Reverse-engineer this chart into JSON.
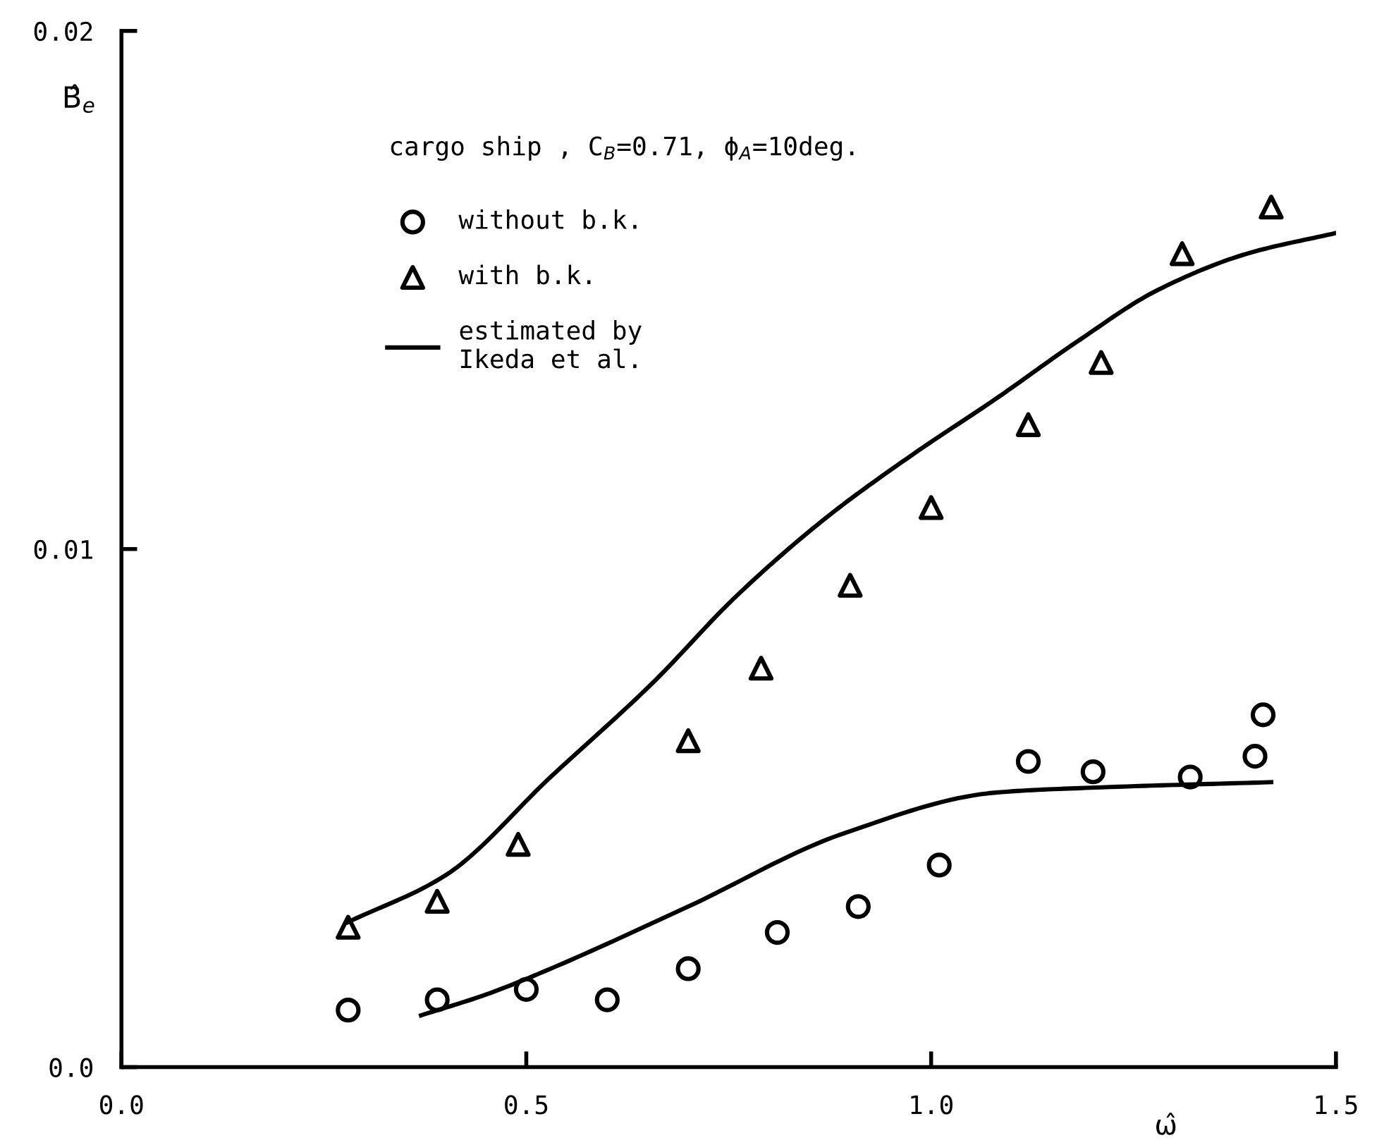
{
  "chart_data": {
    "type": "scatter",
    "xlabel": "ω̂",
    "ylabel": "B̂$_{e}$",
    "annotations": [
      "cargo ship , C$_{B}$=0.71, ϕ$_{A}$=10deg."
    ],
    "xlim": [
      0,
      1.5
    ],
    "xticks": [
      {
        "value": 0,
        "label": "0.0"
      },
      0.5,
      {
        "value": 1,
        "label": "1.0"
      },
      1.5
    ],
    "ylim": [
      0,
      0.02
    ],
    "yticks": [
      {
        "value": 0,
        "label": "0.0"
      },
      0.01,
      0.02
    ],
    "grid": false,
    "legend": "top left",
    "series": [
      {
        "name": "without b.k.",
        "marker": "circle",
        "color": "#000000",
        "x": [
          0.28,
          0.39,
          0.5,
          0.6,
          0.7,
          0.81,
          0.91,
          1.01,
          1.12,
          1.2,
          1.32,
          1.4,
          1.41
        ],
        "values": [
          0.0011,
          0.0013,
          0.0015,
          0.0013,
          0.0019,
          0.0026,
          0.0031,
          0.0039,
          0.0059,
          0.0057,
          0.0056,
          0.006,
          0.0068
        ]
      },
      {
        "name": "with b.k.",
        "marker": "triangle",
        "color": "#000000",
        "x": [
          0.28,
          0.39,
          0.49,
          0.7,
          0.79,
          0.9,
          1.0,
          1.12,
          1.21,
          1.31,
          1.42
        ],
        "values": [
          0.0027,
          0.0032,
          0.0043,
          0.0063,
          0.0077,
          0.0093,
          0.0108,
          0.0124,
          0.0136,
          0.0157,
          0.0166
        ]
      },
      {
        "name": "estimated by\nIkeda et al.",
        "type": "line",
        "marker": "none",
        "line_style": "solid",
        "color": "#000000",
        "x": [
          0.28,
          0.4,
          0.53,
          0.655,
          0.76,
          0.87,
          0.975,
          1.08,
          1.18,
          1.28,
          1.39,
          1.5
        ],
        "values": [
          0.0028,
          0.0037,
          0.0056,
          0.0074,
          0.0091,
          0.0106,
          0.0118,
          0.0129,
          0.014,
          0.015,
          0.0157,
          0.0161
        ]
      },
      {
        "type": "line",
        "marker": "none",
        "line_style": "solid",
        "color": "#000000",
        "x": [
          0.37,
          0.45,
          0.53,
          0.7,
          0.89,
          1.08,
          1.21,
          1.42
        ],
        "values": [
          0.001,
          0.0014,
          0.0019,
          0.0031,
          0.0045,
          0.0053,
          0.0054,
          0.0055
        ]
      }
    ]
  }
}
